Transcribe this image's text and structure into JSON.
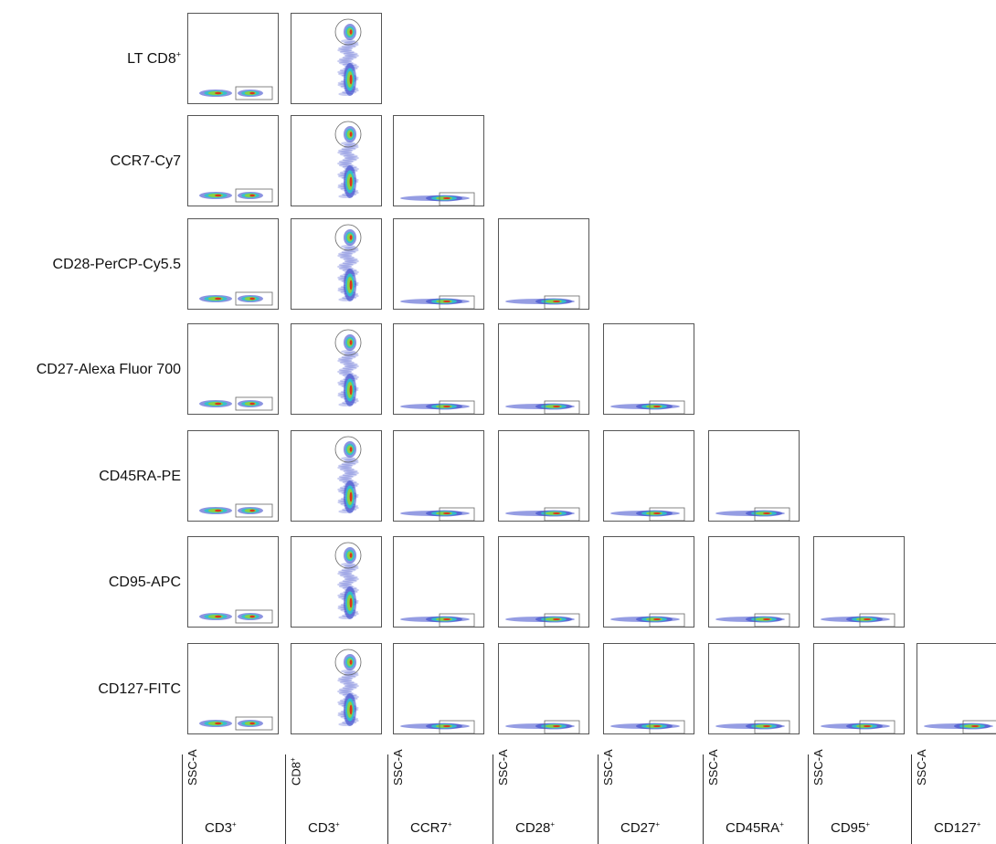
{
  "rows": [
    {
      "label": "LT CD8",
      "sup": "+"
    },
    {
      "label": "CCR7-Cy7",
      "sup": ""
    },
    {
      "label": "CD28-PerCP-Cy5.5",
      "sup": ""
    },
    {
      "label": "CD27-Alexa Fluor 700",
      "sup": ""
    },
    {
      "label": "CD45RA-PE",
      "sup": ""
    },
    {
      "label": "CD95-APC",
      "sup": ""
    },
    {
      "label": "CD127-FITC",
      "sup": ""
    }
  ],
  "columns": [
    {
      "y": "SSC-A",
      "y_sup": "",
      "x": "CD3",
      "x_sup": "+"
    },
    {
      "y": "CD8",
      "y_sup": "+",
      "x": "CD3",
      "x_sup": "+"
    },
    {
      "y": "SSC-A",
      "y_sup": "",
      "x": "CCR7",
      "x_sup": "+"
    },
    {
      "y": "SSC-A",
      "y_sup": "",
      "x": "CD28",
      "x_sup": "+"
    },
    {
      "y": "SSC-A",
      "y_sup": "",
      "x": "CD27",
      "x_sup": "+"
    },
    {
      "y": "SSC-A",
      "y_sup": "",
      "x": "CD45RA",
      "x_sup": "+"
    },
    {
      "y": "SSC-A",
      "y_sup": "",
      "x": "CD95",
      "x_sup": "+"
    },
    {
      "y": "SSC-A",
      "y_sup": "",
      "x": "CD127",
      "x_sup": "+"
    }
  ],
  "colors": {
    "low": "#2b3cc8",
    "mid": "#2fc4c9",
    "high": "#8ed23a",
    "peak": "#e02a1a"
  }
}
